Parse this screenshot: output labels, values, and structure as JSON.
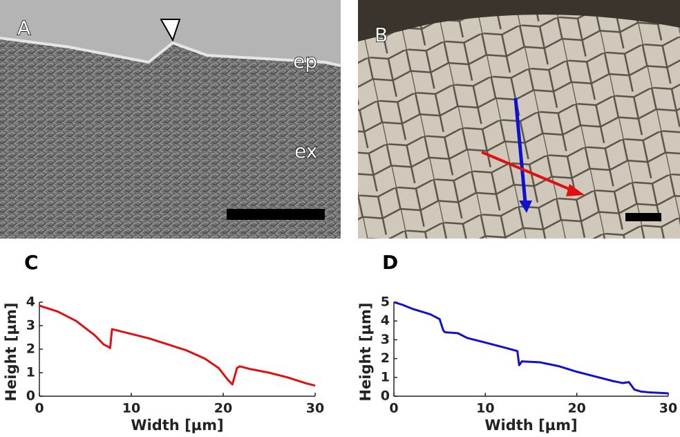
{
  "panels": {
    "a": {
      "label": "A",
      "tags": [
        "ep",
        "ex"
      ]
    },
    "b": {
      "label": "B"
    }
  },
  "chart_data": [
    {
      "type": "line",
      "panel_label": "C",
      "xlabel": "Width [µm]",
      "ylabel": "Height [µm]",
      "color": "#e01010",
      "x": [
        0,
        2,
        4,
        6,
        7,
        7.5,
        7.7,
        7.9,
        10,
        12,
        14,
        16,
        18,
        19.5,
        20.5,
        21,
        21.5,
        21.8,
        23,
        25,
        27,
        29,
        30
      ],
      "values": [
        3.85,
        3.6,
        3.2,
        2.6,
        2.2,
        2.1,
        2.05,
        2.85,
        2.65,
        2.45,
        2.2,
        1.95,
        1.6,
        1.2,
        0.7,
        0.5,
        1.2,
        1.27,
        1.15,
        1.0,
        0.8,
        0.55,
        0.45
      ],
      "xlim": [
        0,
        30
      ],
      "ylim": [
        0,
        4
      ],
      "xticks": [
        0,
        10,
        20,
        30
      ],
      "yticks": [
        0,
        1,
        2,
        3,
        4
      ]
    },
    {
      "type": "line",
      "panel_label": "D",
      "xlabel": "Width [µm]",
      "ylabel": "Height [µm]",
      "color": "#1010d0",
      "x": [
        0,
        1,
        2,
        3,
        4,
        5,
        5.4,
        5.6,
        7,
        8,
        10,
        12,
        13.5,
        13.7,
        14,
        16,
        18,
        20,
        22,
        24,
        25,
        25.7,
        26.3,
        27,
        28,
        30
      ],
      "values": [
        5,
        4.85,
        4.65,
        4.5,
        4.35,
        4.1,
        3.5,
        3.4,
        3.35,
        3.1,
        2.85,
        2.6,
        2.4,
        1.65,
        1.85,
        1.8,
        1.6,
        1.3,
        1.05,
        0.8,
        0.7,
        0.75,
        0.35,
        0.25,
        0.2,
        0.15
      ],
      "xlim": [
        0,
        30
      ],
      "ylim": [
        0,
        5
      ],
      "xticks": [
        0,
        10,
        20,
        30
      ],
      "yticks": [
        0,
        1,
        2,
        3,
        4,
        5
      ]
    }
  ]
}
